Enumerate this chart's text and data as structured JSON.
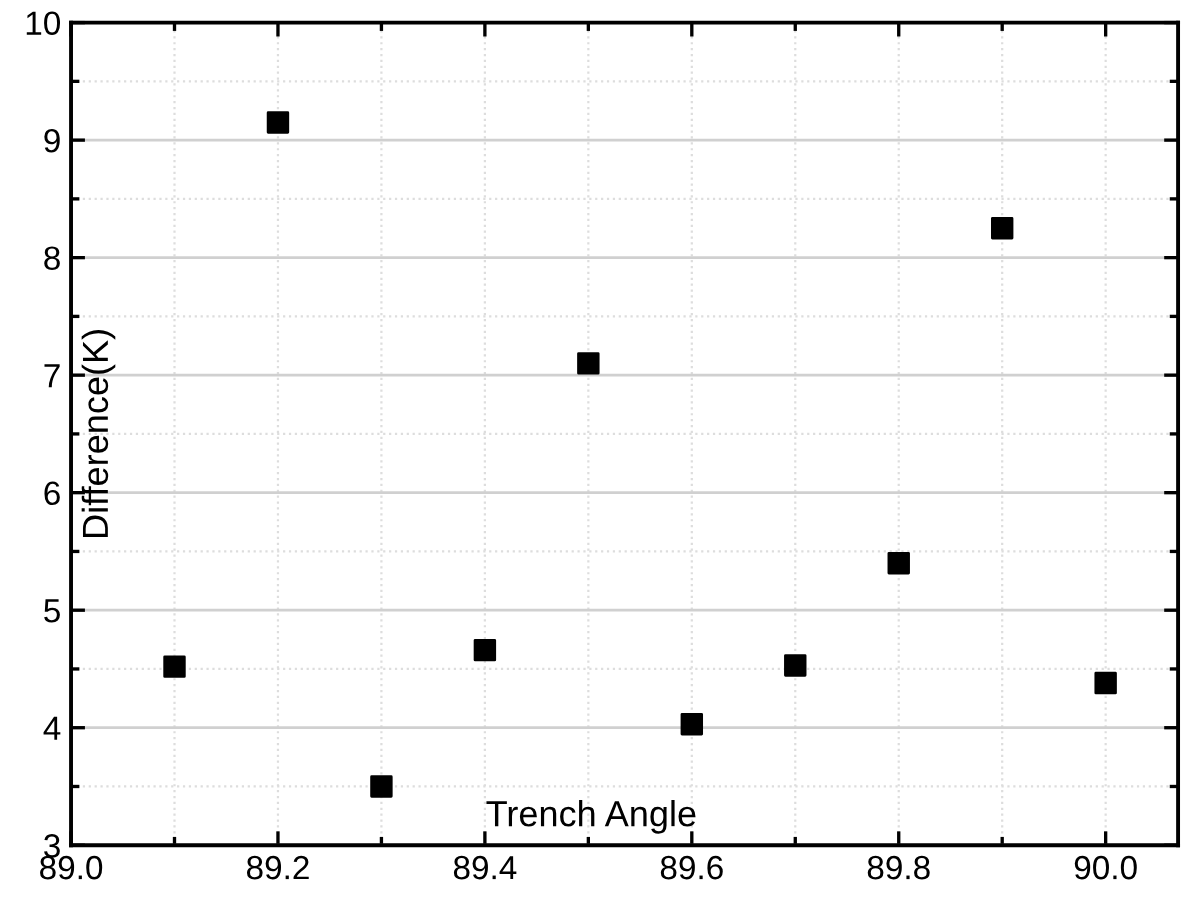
{
  "chart_data": {
    "type": "scatter",
    "xlabel": "Trench Angle",
    "ylabel": "Difference(K)",
    "x": [
      89.1,
      89.2,
      89.3,
      89.4,
      89.5,
      89.6,
      89.7,
      89.8,
      89.9,
      90.0
    ],
    "series": [
      {
        "color": "#000000",
        "values": [
          4.52,
          9.15,
          3.5,
          4.66,
          7.1,
          4.03,
          4.53,
          5.4,
          8.25,
          4.38
        ]
      }
    ],
    "xlim": [
      89.0,
      90.07
    ],
    "xticks": [
      {
        "value": 89.0,
        "label": "89.0"
      },
      {
        "value": 89.2,
        "label": "89.2"
      },
      {
        "value": 89.4,
        "label": "89.4"
      },
      {
        "value": 89.6,
        "label": "89.6"
      },
      {
        "value": 89.8,
        "label": "89.8"
      },
      {
        "value": 90.0,
        "label": "90.0"
      }
    ],
    "ylim": [
      3,
      10
    ],
    "yticks": [
      3,
      4,
      5,
      6,
      7,
      8,
      9,
      10
    ],
    "grid": true,
    "marker": "square"
  }
}
